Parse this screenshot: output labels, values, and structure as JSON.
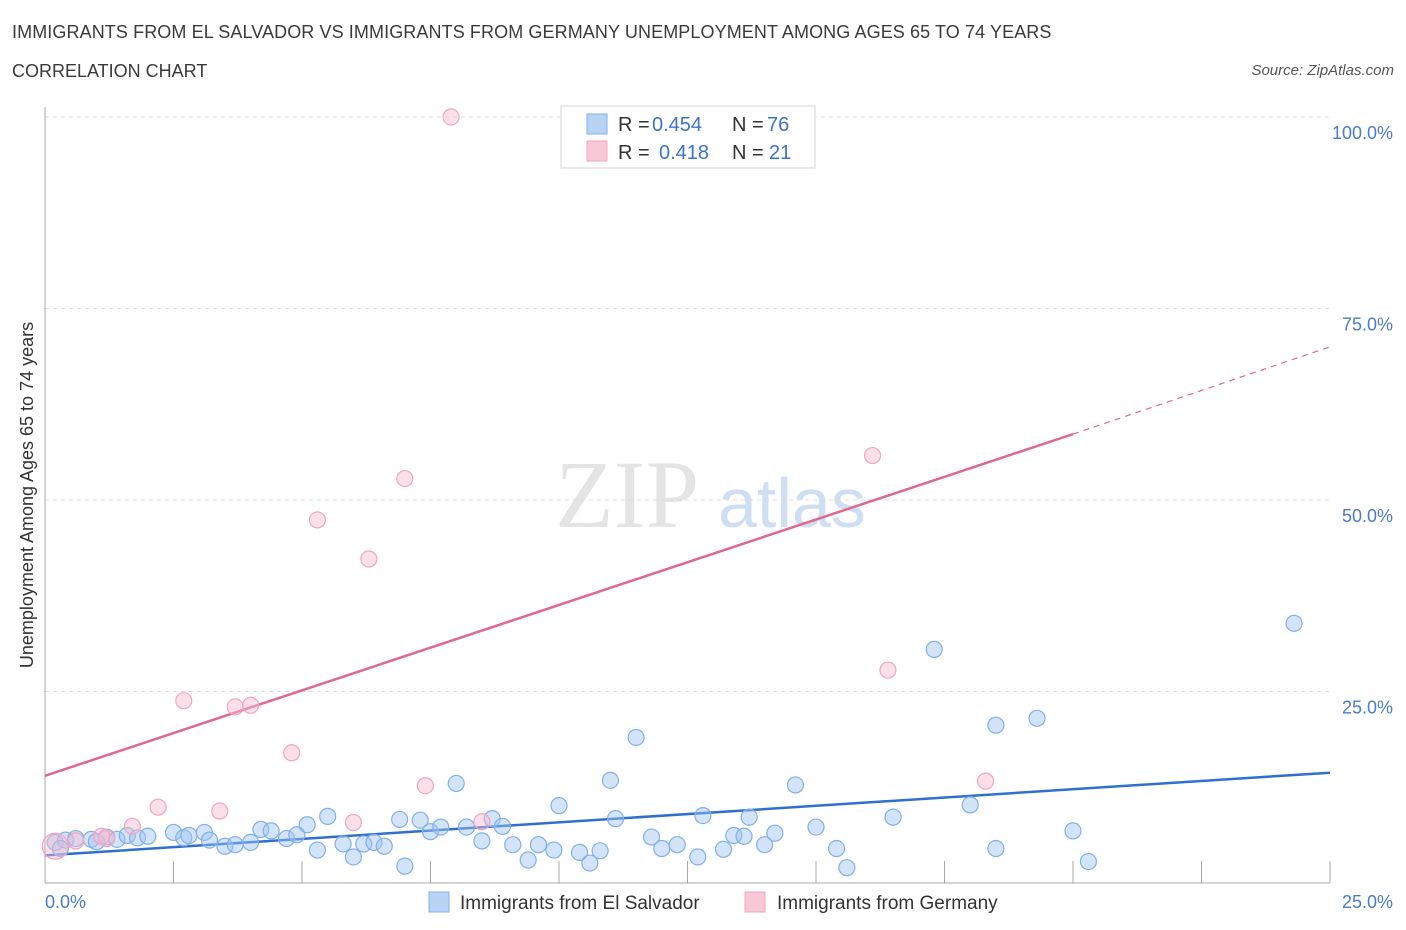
{
  "title": "IMMIGRANTS FROM EL SALVADOR VS IMMIGRANTS FROM GERMANY UNEMPLOYMENT AMONG AGES 65 TO 74 YEARS",
  "subtitle": "CORRELATION CHART",
  "source": "Source: ZipAtlas.com",
  "watermark": {
    "zip": "ZIP",
    "atlas": "atlas"
  },
  "colors": {
    "blue": "#7fb0ea",
    "blue_line": "#2f6fd0",
    "pink": "#f2a5be",
    "pink_line": "#e0688f",
    "tick": "#4a7cc8"
  },
  "legend": {
    "rows": [
      {
        "r_label": "R =",
        "r_value": "0.454",
        "n_label": "N =",
        "n_value": "76"
      },
      {
        "r_label": "R =",
        "r_value": "0.418",
        "n_label": "N =",
        "n_value": "21"
      }
    ]
  },
  "chart_data": {
    "type": "scatter",
    "title": "IMMIGRANTS FROM EL SALVADOR VS IMMIGRANTS FROM GERMANY UNEMPLOYMENT AMONG AGES 65 TO 74 YEARS",
    "xlabel": "",
    "ylabel": "Unemployment Among Ages 65 to 74 years",
    "xlim": [
      0,
      25
    ],
    "ylim": [
      0,
      100
    ],
    "x_tick_labels": [
      "0.0%",
      "25.0%"
    ],
    "y_ticks": [
      25,
      50,
      75,
      100
    ],
    "y_tick_labels": [
      "25.0%",
      "50.0%",
      "75.0%",
      "100.0%"
    ],
    "series": [
      {
        "name": "Immigrants from El Salvador",
        "R": 0.454,
        "N": 76,
        "trend": {
          "x0": 0,
          "y0": 3.6,
          "x1": 25,
          "y1": 14.4
        },
        "points": [
          [
            0.2,
            5.3
          ],
          [
            0.4,
            5.6
          ],
          [
            0.6,
            5.8
          ],
          [
            0.9,
            5.7
          ],
          [
            1.2,
            6.0
          ],
          [
            1.4,
            5.7
          ],
          [
            1.6,
            6.2
          ],
          [
            1.8,
            5.9
          ],
          [
            2.0,
            6.1
          ],
          [
            2.5,
            6.6
          ],
          [
            2.7,
            5.9
          ],
          [
            2.8,
            6.2
          ],
          [
            3.1,
            6.6
          ],
          [
            3.2,
            5.6
          ],
          [
            3.5,
            4.8
          ],
          [
            3.7,
            5.0
          ],
          [
            4.0,
            5.3
          ],
          [
            4.2,
            7.0
          ],
          [
            4.4,
            6.8
          ],
          [
            4.7,
            5.8
          ],
          [
            4.9,
            6.3
          ],
          [
            5.1,
            7.6
          ],
          [
            5.3,
            4.3
          ],
          [
            5.5,
            8.7
          ],
          [
            5.8,
            5.1
          ],
          [
            6.0,
            3.4
          ],
          [
            6.2,
            5.1
          ],
          [
            6.4,
            5.3
          ],
          [
            6.6,
            4.8
          ],
          [
            6.9,
            8.3
          ],
          [
            7.0,
            2.2
          ],
          [
            7.3,
            8.2
          ],
          [
            7.5,
            6.7
          ],
          [
            7.7,
            7.3
          ],
          [
            8.0,
            13.0
          ],
          [
            8.2,
            7.3
          ],
          [
            8.5,
            5.5
          ],
          [
            8.7,
            8.4
          ],
          [
            8.9,
            7.4
          ],
          [
            9.1,
            5.0
          ],
          [
            9.4,
            3.0
          ],
          [
            9.6,
            5.0
          ],
          [
            9.9,
            4.3
          ],
          [
            10.0,
            10.1
          ],
          [
            10.4,
            4.0
          ],
          [
            10.6,
            2.6
          ],
          [
            10.8,
            4.2
          ],
          [
            11.0,
            13.4
          ],
          [
            11.1,
            8.4
          ],
          [
            11.5,
            19.0
          ],
          [
            11.8,
            6.0
          ],
          [
            12.0,
            4.5
          ],
          [
            12.3,
            5.0
          ],
          [
            12.7,
            3.4
          ],
          [
            12.8,
            8.8
          ],
          [
            13.2,
            4.4
          ],
          [
            13.4,
            6.2
          ],
          [
            13.6,
            6.1
          ],
          [
            13.7,
            8.6
          ],
          [
            14.0,
            5.0
          ],
          [
            14.2,
            6.5
          ],
          [
            14.6,
            12.8
          ],
          [
            15.0,
            7.3
          ],
          [
            15.4,
            4.5
          ],
          [
            15.6,
            2.0
          ],
          [
            16.5,
            8.6
          ],
          [
            17.3,
            30.5
          ],
          [
            18.0,
            10.2
          ],
          [
            18.5,
            4.5
          ],
          [
            18.5,
            20.6
          ],
          [
            19.3,
            21.5
          ],
          [
            20.0,
            6.8
          ],
          [
            20.3,
            2.8
          ],
          [
            24.3,
            33.9
          ],
          [
            0.3,
            4.5
          ],
          [
            1.0,
            5.4
          ]
        ]
      },
      {
        "name": "Immigrants from Germany",
        "R": 0.418,
        "N": 21,
        "trend": {
          "x0": 0,
          "y0": 14.0,
          "x1": 20,
          "y1": 58.6,
          "dash_to_x": 25,
          "dash_to_y": 70.0
        },
        "points": [
          [
            0.2,
            4.8
          ],
          [
            1.2,
            5.8
          ],
          [
            1.7,
            7.4
          ],
          [
            2.2,
            9.9
          ],
          [
            2.7,
            23.8
          ],
          [
            3.4,
            9.4
          ],
          [
            3.7,
            23.0
          ],
          [
            4.0,
            23.2
          ],
          [
            4.8,
            17.0
          ],
          [
            5.3,
            47.4
          ],
          [
            6.0,
            7.9
          ],
          [
            6.3,
            42.3
          ],
          [
            7.0,
            52.8
          ],
          [
            7.4,
            12.7
          ],
          [
            7.9,
            100.0
          ],
          [
            8.5,
            8.0
          ],
          [
            16.1,
            55.8
          ],
          [
            16.4,
            27.8
          ],
          [
            18.3,
            13.3
          ],
          [
            0.6,
            5.5
          ],
          [
            1.1,
            6.1
          ]
        ]
      }
    ]
  },
  "bottom_legend": {
    "items": [
      "Immigrants from El Salvador",
      "Immigrants from Germany"
    ]
  }
}
